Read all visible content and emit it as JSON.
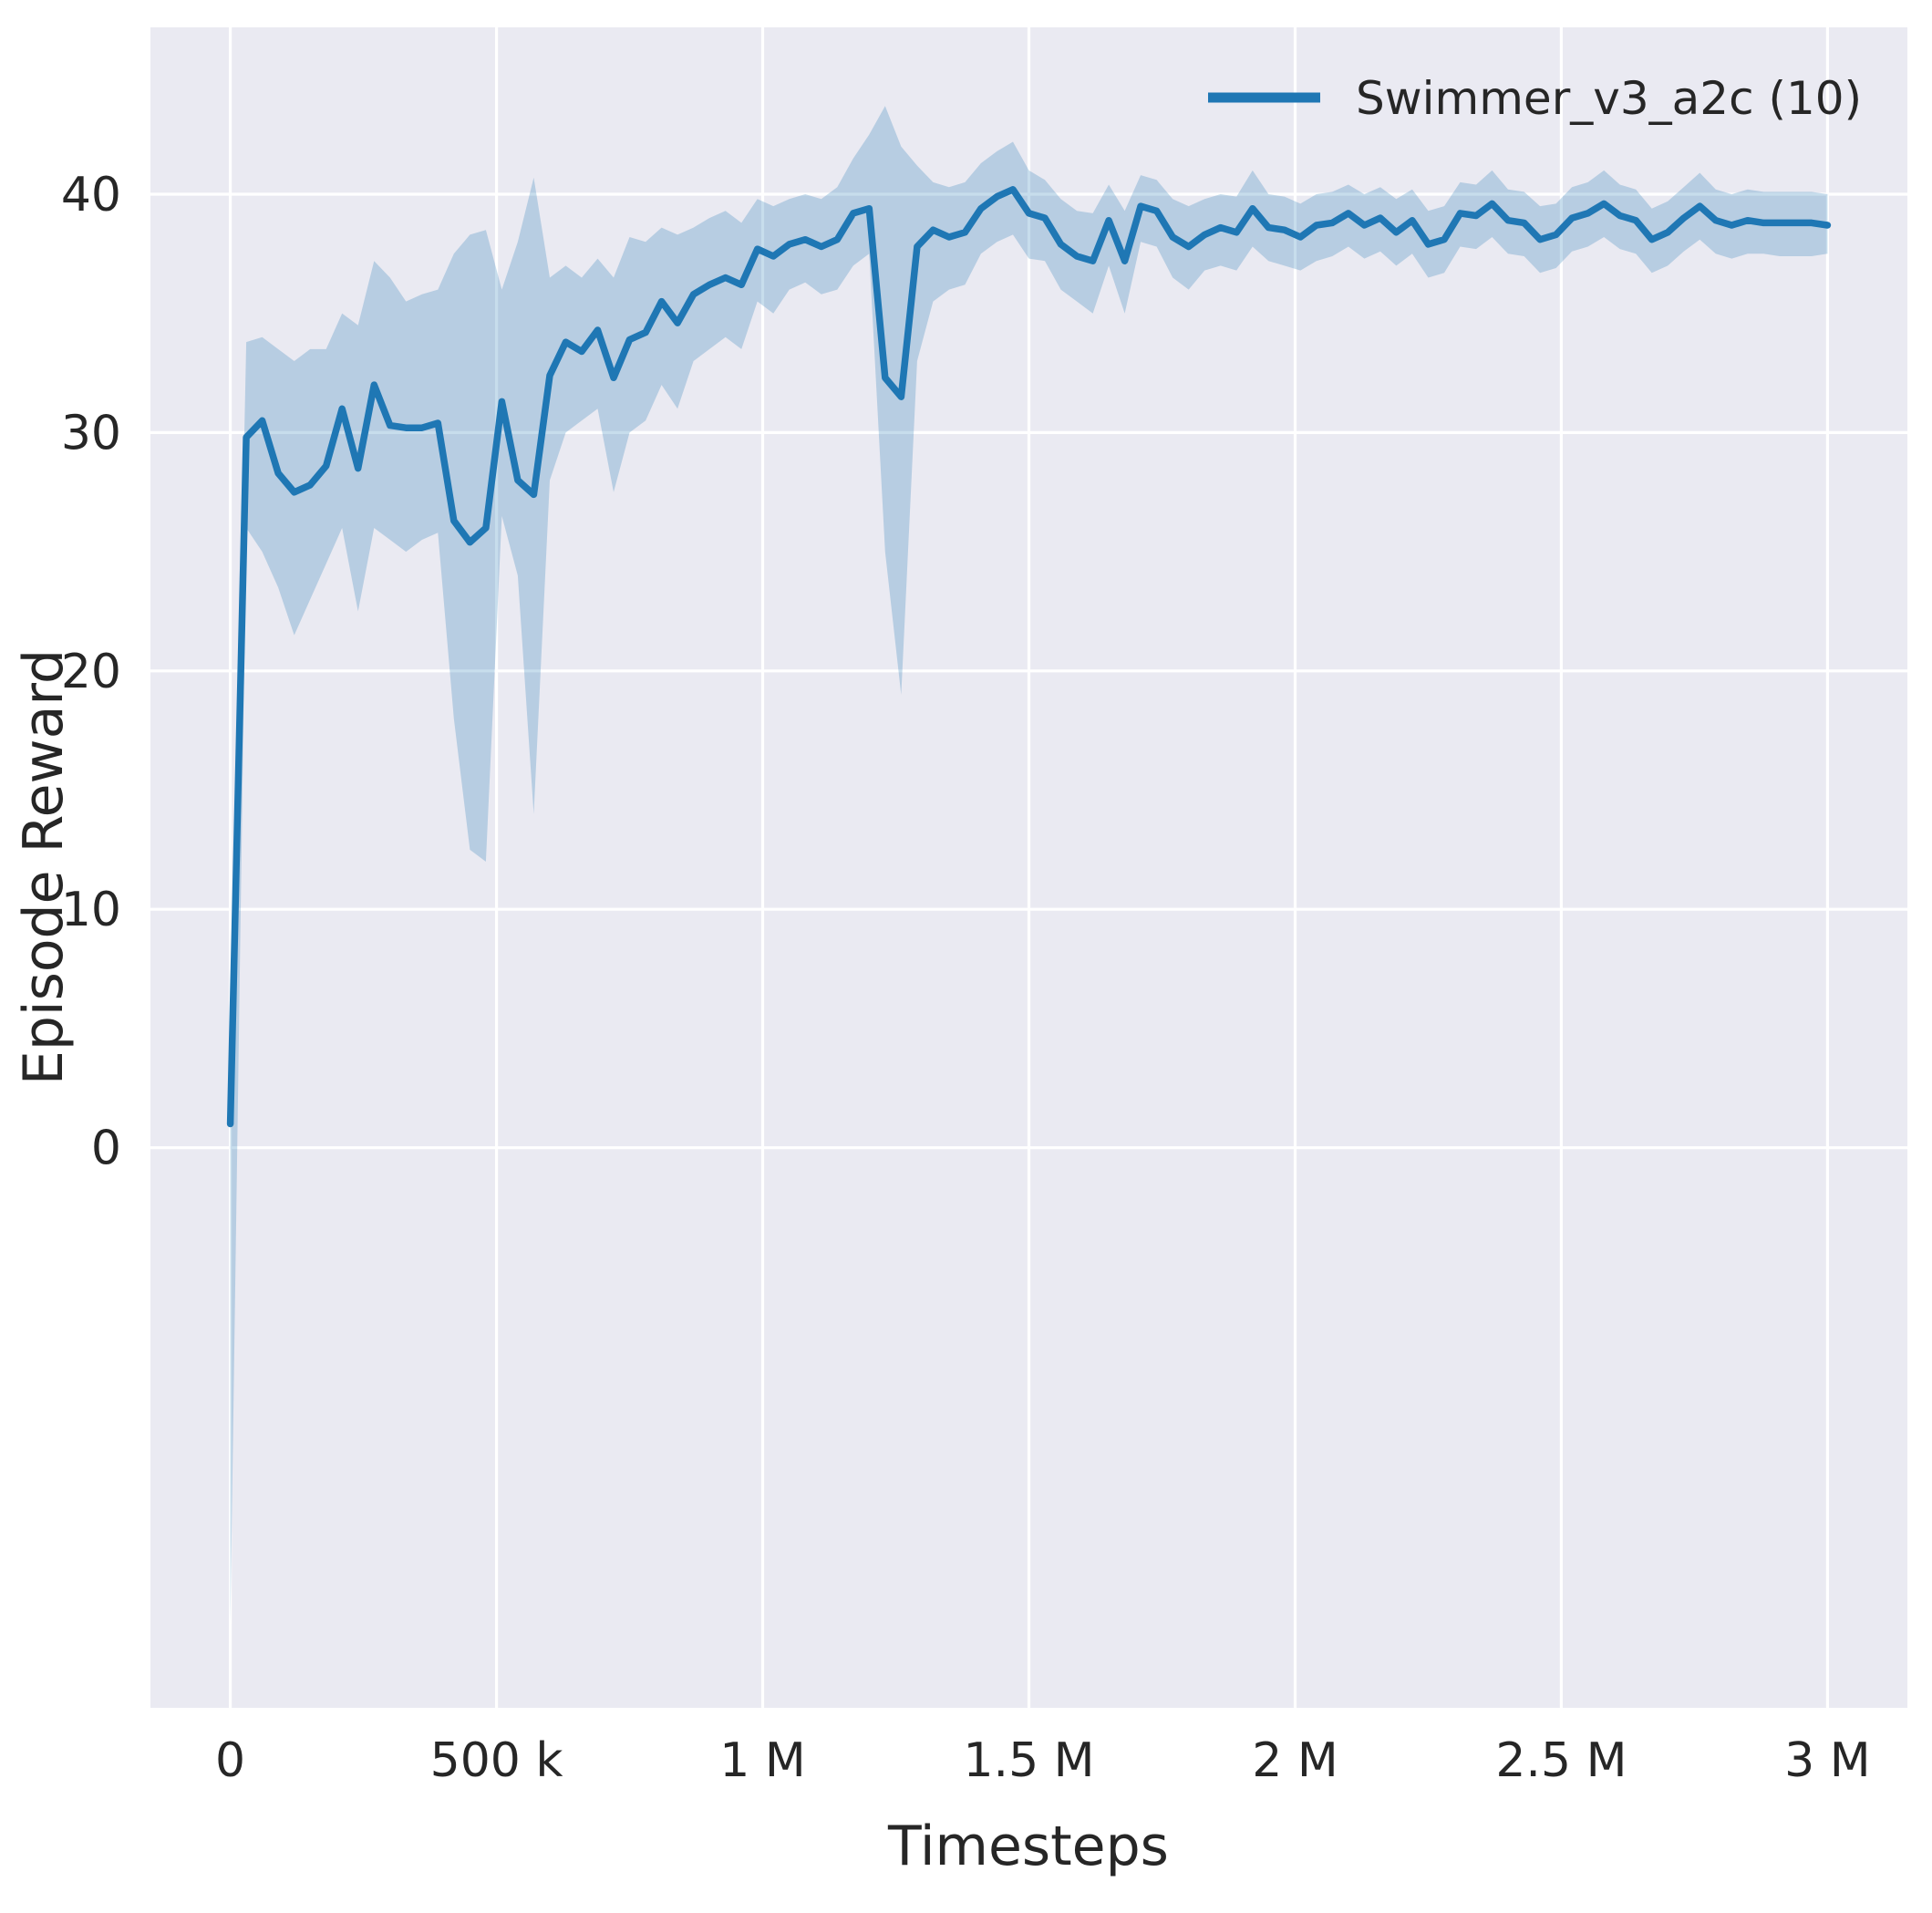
{
  "chart_data": {
    "type": "line",
    "xlabel": "Timesteps",
    "ylabel": "Episode Reward",
    "legend_position": "upper right",
    "grid": true,
    "xlim": [
      -150000,
      3150000
    ],
    "ylim": [
      -23.5,
      47
    ],
    "x_unit_multiplier": 1000,
    "x_ticks": [
      0,
      500000,
      1000000,
      1500000,
      2000000,
      2500000,
      3000000
    ],
    "x_tick_labels": [
      "0",
      "500 k",
      "1 M",
      "1.5 M",
      "2 M",
      "2.5 M",
      "3 M"
    ],
    "y_ticks": [
      0,
      10,
      20,
      30,
      40
    ],
    "y_tick_labels": [
      "0",
      "10",
      "20",
      "30",
      "40"
    ],
    "colors": {
      "line": "#1f77b4",
      "band": "rgba(31,119,180,0.25)",
      "plot_background": "#eaeaf2",
      "figure_background": "#ffffff",
      "grid": "#ffffff",
      "text": "#262626"
    },
    "series": [
      {
        "name": "Swimmer_v3_a2c (10)",
        "x_k": [
          0,
          30,
          60,
          90,
          120,
          150,
          180,
          210,
          240,
          270,
          300,
          330,
          360,
          390,
          420,
          450,
          480,
          510,
          540,
          570,
          600,
          630,
          660,
          690,
          720,
          750,
          780,
          810,
          840,
          870,
          900,
          930,
          960,
          990,
          1020,
          1050,
          1080,
          1110,
          1140,
          1170,
          1200,
          1230,
          1260,
          1290,
          1320,
          1350,
          1380,
          1410,
          1440,
          1470,
          1500,
          1530,
          1560,
          1590,
          1620,
          1650,
          1680,
          1710,
          1740,
          1770,
          1800,
          1830,
          1860,
          1890,
          1920,
          1950,
          1980,
          2010,
          2040,
          2070,
          2100,
          2130,
          2160,
          2190,
          2220,
          2250,
          2280,
          2310,
          2340,
          2370,
          2400,
          2430,
          2460,
          2490,
          2520,
          2550,
          2580,
          2610,
          2640,
          2670,
          2700,
          2730,
          2760,
          2790,
          2820,
          2850,
          2880,
          2910,
          2940,
          2970,
          3000
        ],
        "mean": [
          1.0,
          29.8,
          30.5,
          28.3,
          27.5,
          27.8,
          28.6,
          31.0,
          28.5,
          32.0,
          30.3,
          30.2,
          30.2,
          30.4,
          26.3,
          25.4,
          26.0,
          31.3,
          28.0,
          27.4,
          32.4,
          33.8,
          33.4,
          34.3,
          32.3,
          33.9,
          34.2,
          35.5,
          34.6,
          35.8,
          36.2,
          36.5,
          36.2,
          37.7,
          37.4,
          37.9,
          38.1,
          37.8,
          38.1,
          39.2,
          39.4,
          32.3,
          31.5,
          37.8,
          38.5,
          38.2,
          38.4,
          39.4,
          39.9,
          40.2,
          39.2,
          39.0,
          37.9,
          37.4,
          37.2,
          38.9,
          37.2,
          39.5,
          39.3,
          38.2,
          37.8,
          38.3,
          38.6,
          38.4,
          39.4,
          38.6,
          38.5,
          38.2,
          38.7,
          38.8,
          39.2,
          38.7,
          39.0,
          38.4,
          38.9,
          37.9,
          38.1,
          39.2,
          39.1,
          39.6,
          38.9,
          38.8,
          38.1,
          38.3,
          39.0,
          39.2,
          39.6,
          39.1,
          38.9,
          38.1,
          38.4,
          39.0,
          39.5,
          38.9,
          38.7,
          38.9,
          38.8,
          38.8,
          38.8,
          38.8,
          38.7
        ],
        "band_lower": [
          -20,
          26,
          25,
          23.5,
          21.5,
          23,
          24.5,
          26,
          22.5,
          26,
          25.5,
          25,
          25.5,
          25.8,
          18,
          12.5,
          12,
          26.5,
          24,
          14,
          28,
          30,
          30.5,
          31,
          27.5,
          30,
          30.5,
          32,
          31,
          33,
          33.5,
          34,
          33.5,
          35.5,
          35,
          36,
          36.3,
          35.8,
          36,
          37,
          37.5,
          25,
          19,
          33,
          35.5,
          36,
          36.2,
          37.5,
          38,
          38.3,
          37.3,
          37.2,
          36,
          35.5,
          35,
          37,
          35,
          38,
          37.8,
          36.5,
          36,
          36.8,
          37,
          36.8,
          37.8,
          37.2,
          37,
          36.8,
          37.2,
          37.4,
          37.8,
          37.3,
          37.6,
          37,
          37.5,
          36.5,
          36.7,
          37.8,
          37.7,
          38.2,
          37.5,
          37.4,
          36.7,
          36.9,
          37.6,
          37.8,
          38.2,
          37.7,
          37.5,
          36.7,
          37,
          37.6,
          38.1,
          37.5,
          37.3,
          37.5,
          37.5,
          37.4,
          37.4,
          37.4,
          37.5
        ],
        "band_upper": [
          2,
          33.8,
          34,
          33.5,
          33,
          33.5,
          33.5,
          35,
          34.5,
          37.2,
          36.5,
          35.5,
          35.8,
          36,
          37.5,
          38.3,
          38.5,
          36,
          38,
          40.7,
          36.5,
          37,
          36.5,
          37.3,
          36.5,
          38.2,
          38,
          38.6,
          38.3,
          38.6,
          39,
          39.3,
          38.8,
          39.8,
          39.5,
          39.8,
          40,
          39.8,
          40.3,
          41.5,
          42.5,
          43.7,
          42,
          41.2,
          40.5,
          40.3,
          40.5,
          41.3,
          41.8,
          42.2,
          41,
          40.6,
          39.8,
          39.3,
          39.2,
          40.4,
          39.3,
          40.8,
          40.6,
          39.8,
          39.5,
          39.8,
          40,
          39.9,
          41,
          40,
          39.9,
          39.6,
          40,
          40.1,
          40.4,
          40,
          40.3,
          39.8,
          40.2,
          39.3,
          39.5,
          40.5,
          40.4,
          41,
          40.2,
          40.1,
          39.5,
          39.6,
          40.3,
          40.5,
          41,
          40.4,
          40.2,
          39.4,
          39.7,
          40.3,
          40.9,
          40.2,
          40,
          40.2,
          40.1,
          40.1,
          40.1,
          40.1,
          40
        ]
      }
    ]
  }
}
